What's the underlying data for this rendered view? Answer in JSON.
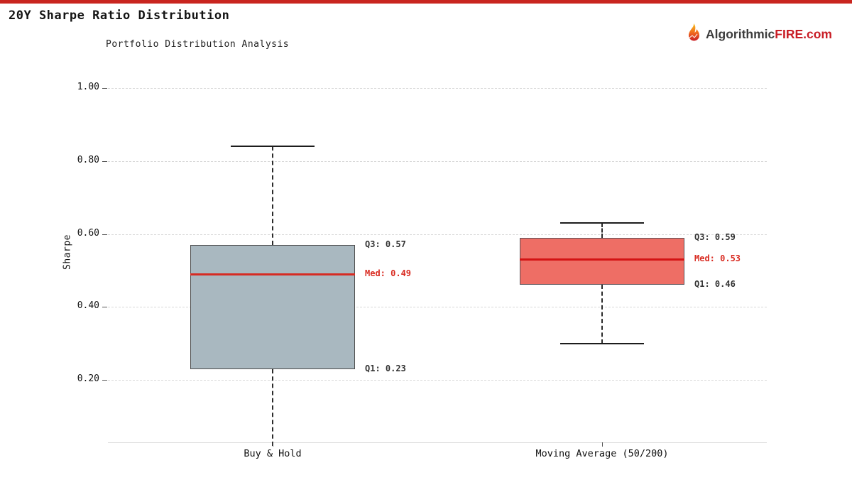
{
  "page": {
    "title": "20Y Sharpe Ratio Distribution",
    "subtitle": "Portfolio Distribution Analysis",
    "accent_color": "#c9251f"
  },
  "brand": {
    "name_prefix": "Algorithmic",
    "name_accent": "FIRE",
    "name_suffix": ".com",
    "prefix_color": "#3d3d3d",
    "accent_color": "#c81d25",
    "icon": "flame-icon"
  },
  "chart_data": {
    "type": "box",
    "title": "20Y Sharpe Ratio Distribution",
    "subtitle": "Portfolio Distribution Analysis",
    "xlabel": "",
    "ylabel": "Sharpe",
    "ylim": [
      0.03,
      1.06
    ],
    "grid": "horizontal dashed",
    "legend": "none",
    "yticks": [
      {
        "value": 1.0,
        "label": "1.00"
      },
      {
        "value": 0.8,
        "label": "0.80"
      },
      {
        "value": 0.6,
        "label": "0.60"
      },
      {
        "value": 0.4,
        "label": "0.40"
      },
      {
        "value": 0.2,
        "label": "0.20"
      }
    ],
    "categories": [
      "Buy & Hold",
      "Moving Average (50/200)"
    ],
    "annotation_colors": {
      "quartile": "#333333",
      "median": "#d92c22"
    },
    "series": [
      {
        "label": "Buy & Hold",
        "q1": 0.23,
        "median": 0.49,
        "q3": 0.57,
        "whisker_high": 0.84,
        "whisker_low": null,
        "whisker_low_note": "extends below visible axis (clipped)",
        "fill": "#a9b8c0",
        "border": "#4d4d4d",
        "median_color": "#d62b23",
        "labels": {
          "q3": "Q3: 0.57",
          "med": "Med: 0.49",
          "q1": "Q1: 0.23"
        }
      },
      {
        "label": "Moving Average (50/200)",
        "q1": 0.46,
        "median": 0.53,
        "q3": 0.59,
        "whisker_high": 0.63,
        "whisker_low": 0.3,
        "fill": "#ee6e65",
        "border": "#5a5056",
        "median_color": "#d31414",
        "labels": {
          "q3": "Q3: 0.59",
          "med": "Med: 0.53",
          "q1": "Q1: 0.46"
        }
      }
    ]
  }
}
